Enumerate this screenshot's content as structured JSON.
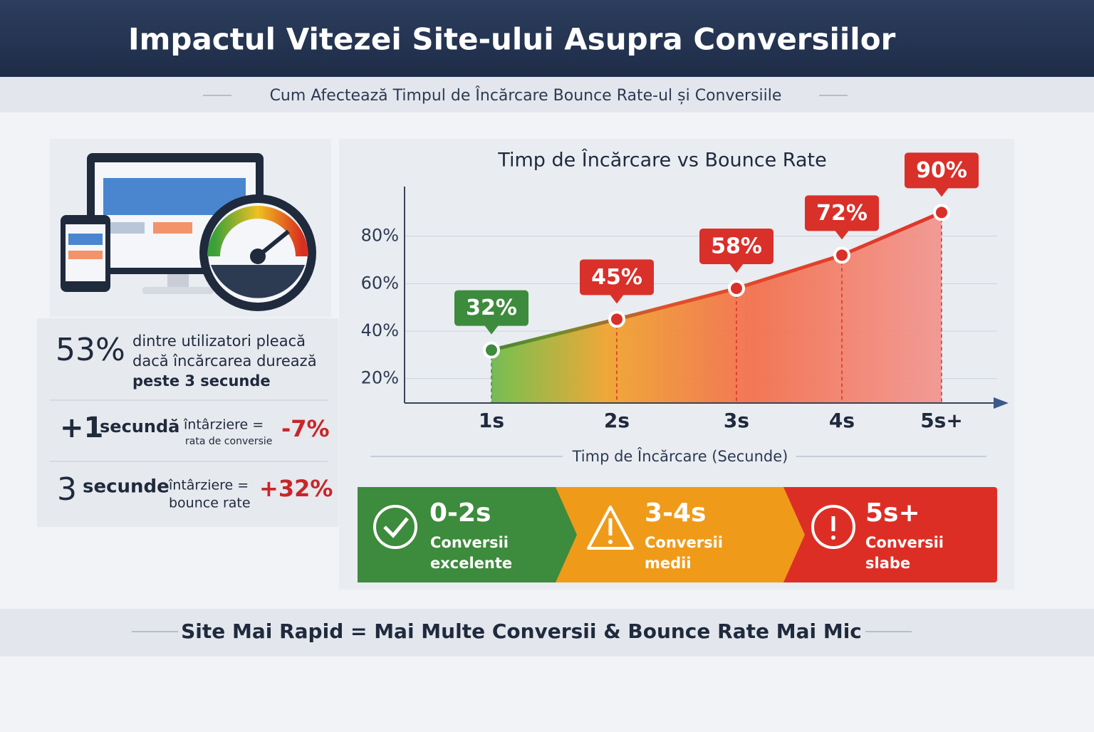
{
  "header": {
    "title": "Impactul Vitezei Site-ului Asupra Conversiilor",
    "subtitle": "Cum Afectează Timpul de Încărcare Bounce Rate-ul și Conversiile"
  },
  "stats": [
    {
      "big": "53%",
      "lines": [
        "dintre utilizatori pleacă",
        "dacă încărcarea durează",
        "peste 3 secunde"
      ]
    },
    {
      "big": "+1",
      "unit": "secundă",
      "text": "întârziere =",
      "sub": "rata de conversie",
      "effect": "-7%"
    },
    {
      "big": "3",
      "unit": "secunde",
      "text": "întârziere =",
      "sub": "bounce rate",
      "effect": "+32%"
    }
  ],
  "chart_data": {
    "type": "area",
    "title": "Timp de Încărcare vs Bounce Rate",
    "xlabel": "Timp de Încărcare (Secunde)",
    "categories": [
      "1s",
      "2s",
      "3s",
      "4s",
      "5s+"
    ],
    "values": [
      32,
      45,
      58,
      72,
      90
    ],
    "value_labels": [
      "32%",
      "45%",
      "58%",
      "72%",
      "90%"
    ],
    "label_colors": [
      "#3d8b3d",
      "#d9302a",
      "#d9302a",
      "#d9302a",
      "#d9302a"
    ],
    "ylim": [
      10,
      100
    ],
    "yticks": [
      {
        "value": 20,
        "label": "20%"
      },
      {
        "value": 40,
        "label": "40%"
      },
      {
        "value": 60,
        "label": "60%"
      },
      {
        "value": 80,
        "label": "80%"
      }
    ],
    "grid": true
  },
  "legend": [
    {
      "range": "0-2s",
      "lines": [
        "Conversii",
        "excelente"
      ]
    },
    {
      "range": "3-4s",
      "lines": [
        "Conversii",
        "medii"
      ]
    },
    {
      "range": "5s+",
      "lines": [
        "Conversii",
        "slabe"
      ]
    }
  ],
  "footer": "Site Mai Rapid = Mai Multe Conversii & Bounce Rate Mai Mic"
}
